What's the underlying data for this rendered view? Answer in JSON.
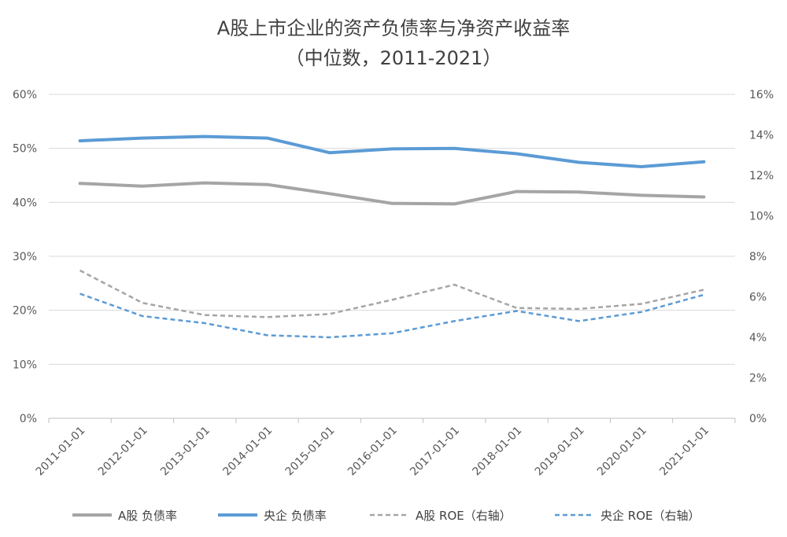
{
  "chart_data": {
    "type": "line",
    "title": "A股上市企业的资产负债率与净资产收益率",
    "subtitle": "（中位数，2011-2021）",
    "categories": [
      "2011-01-01",
      "2012-01-01",
      "2013-01-01",
      "2014-01-01",
      "2015-01-01",
      "2016-01-01",
      "2017-01-01",
      "2018-01-01",
      "2019-01-01",
      "2020-01-01",
      "2021-01-01"
    ],
    "y_left": {
      "ticks": [
        "0%",
        "10%",
        "20%",
        "30%",
        "40%",
        "50%",
        "60%"
      ],
      "ylim": [
        0,
        60
      ]
    },
    "y_right": {
      "ticks": [
        "0%",
        "2%",
        "4%",
        "6%",
        "8%",
        "10%",
        "12%",
        "14%",
        "16%"
      ],
      "ylim": [
        0,
        16
      ]
    },
    "grid": true,
    "legend_position": "bottom",
    "series": [
      {
        "name": "A股 负债率",
        "axis": "left",
        "style": "solid",
        "color": "#a5a5a5",
        "values": [
          43.5,
          43.0,
          43.6,
          43.3,
          41.6,
          39.8,
          39.7,
          42.0,
          41.9,
          41.3,
          41.0
        ]
      },
      {
        "name": "央企 负债率",
        "axis": "left",
        "style": "solid",
        "color": "#5b9bd5",
        "values": [
          51.4,
          51.9,
          52.2,
          51.9,
          49.2,
          49.9,
          50.0,
          49.0,
          47.4,
          46.6,
          47.5
        ]
      },
      {
        "name": "A股 ROE（右轴）",
        "axis": "right",
        "style": "dashed",
        "color": "#a5a5a5",
        "values": [
          7.3,
          5.7,
          5.1,
          5.0,
          5.15,
          5.85,
          6.6,
          5.45,
          5.4,
          5.65,
          6.35
        ]
      },
      {
        "name": "央企 ROE（右轴）",
        "axis": "right",
        "style": "dashed",
        "color": "#5b9bd5",
        "values": [
          6.15,
          5.05,
          4.7,
          4.1,
          4.0,
          4.2,
          4.8,
          5.3,
          4.8,
          5.25,
          6.1
        ]
      }
    ]
  }
}
